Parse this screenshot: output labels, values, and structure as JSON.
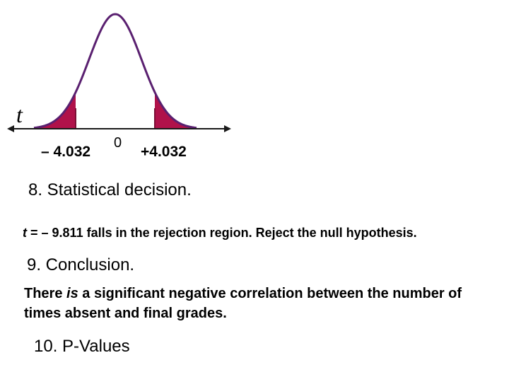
{
  "diagram": {
    "variable_label": "t",
    "lower_critical": "– 4.032",
    "center": "0",
    "upper_critical": "+4.032",
    "colors": {
      "curve": "#5a2070",
      "tail_fill": "#b0124a",
      "axis": "#1a1a1a"
    }
  },
  "step8": {
    "heading": "8. Statistical decision.",
    "t_symbol": "t",
    "decision_text": " = – 9.811 falls in the rejection region. Reject the null hypothesis."
  },
  "step9": {
    "heading": "9. Conclusion.",
    "conclusion_pre": "There ",
    "conclusion_em": "is",
    "conclusion_post": " a significant negative correlation between the number of times absent and final grades."
  },
  "step10": {
    "heading": "10. P-Values"
  }
}
